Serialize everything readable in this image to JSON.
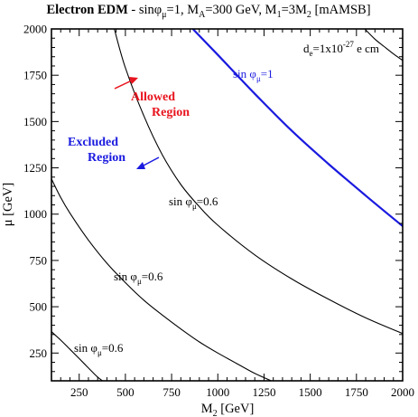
{
  "chart_data": {
    "type": "line",
    "title_bold": "Electron EDM",
    "title_rest": " - sinφ",
    "title_sub1": "μ",
    "title_mid": "=1, M",
    "title_sub2": "A",
    "title_mid2": "=300 GeV, M",
    "title_sub3": "1",
    "title_mid3": "=3M",
    "title_sub4": "2",
    "title_end": " [mAMSB]",
    "xlabel_main": "M",
    "xlabel_sub": "2",
    "xlabel_unit": "  [GeV]",
    "ylabel": "μ  [GeV]",
    "xlim": [
      100,
      2000
    ],
    "ylim": [
      100,
      2000
    ],
    "xticks": [
      250,
      500,
      750,
      1000,
      1250,
      1500,
      1750,
      2000
    ],
    "yticks": [
      250,
      500,
      750,
      1000,
      1250,
      1500,
      1750,
      2000
    ],
    "grid": false,
    "series": [
      {
        "name": "sin φμ=1",
        "color": "#1a1adf",
        "x": [
          865,
          1000,
          1200,
          1400,
          1600,
          1800,
          2000
        ],
        "y": [
          2000,
          1860,
          1650,
          1450,
          1270,
          1100,
          935
        ]
      },
      {
        "name": "sin φμ=0.6",
        "color": "#000000",
        "x": [
          440,
          500,
          600,
          700,
          800,
          900,
          1000,
          1200,
          1400,
          1600,
          1800,
          2000
        ],
        "y": [
          2000,
          1790,
          1530,
          1320,
          1160,
          1040,
          940,
          780,
          650,
          540,
          440,
          355
        ]
      },
      {
        "name": "sin φμ=0.6",
        "color": "#000000",
        "x": [
          100,
          150,
          200,
          300,
          400,
          500,
          600,
          700,
          800,
          900,
          1000,
          1100,
          1200,
          1300
        ],
        "y": [
          1190,
          1090,
          1005,
          860,
          735,
          630,
          535,
          455,
          380,
          310,
          250,
          195,
          140,
          95
        ]
      },
      {
        "name": "sin φμ=0.6",
        "color": "#000000",
        "x": [
          100,
          150,
          200,
          250,
          300,
          350,
          390
        ],
        "y": [
          365,
          320,
          270,
          220,
          170,
          120,
          90
        ]
      },
      {
        "name": "de=1x10-27 e cm",
        "color": "#000000",
        "x": [
          1795,
          1850,
          1900,
          1950,
          2000
        ],
        "y": [
          2000,
          1945,
          1905,
          1865,
          1830
        ]
      }
    ],
    "annotations": {
      "contour_label_main": "sin φ",
      "contour_label_sub": "μ",
      "label_1": "=1",
      "label_06": "=0.6",
      "de_main": "d",
      "de_sub": "e",
      "de_mid": "=1x10",
      "de_sup": "-27",
      "de_end": " e cm",
      "allowed_1": "Allowed",
      "allowed_2": "Region",
      "excluded_1": "Excluded",
      "excluded_2": "Region"
    },
    "colors": {
      "blue": "#1a1adf",
      "red": "#e8141e",
      "axis": "#000000"
    }
  }
}
